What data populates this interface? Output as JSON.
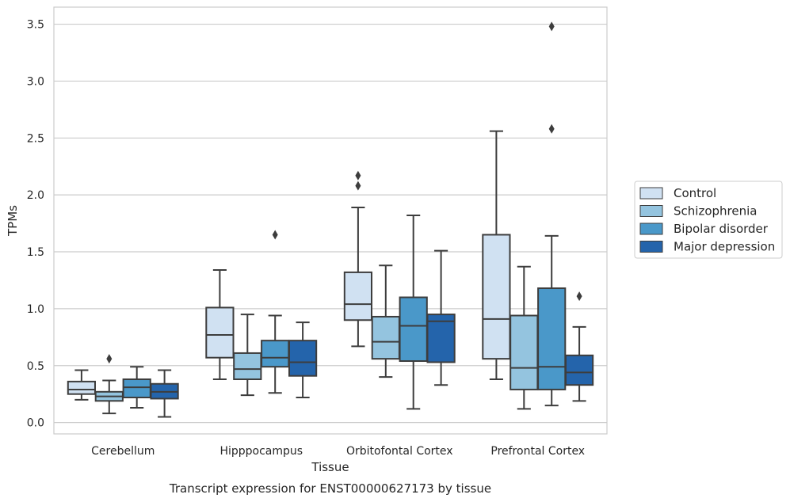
{
  "chart_data": {
    "type": "box",
    "xlabel": "Tissue",
    "ylabel": "TPMs",
    "caption": "Transcript expression for ENST00000627173 by tissue",
    "ylim": [
      -0.1,
      3.65
    ],
    "yticks": [
      0.0,
      0.5,
      1.0,
      1.5,
      2.0,
      2.5,
      3.0,
      3.5
    ],
    "ytick_labels": [
      "0.0",
      "0.5",
      "1.0",
      "1.5",
      "2.0",
      "2.5",
      "3.0",
      "3.5"
    ],
    "grid": "horizontal",
    "legend_position": "right",
    "categories": [
      "Cerebellum",
      "Hipppocampus",
      "Orbitofontal Cortex",
      "Prefrontal Cortex"
    ],
    "series": [
      {
        "name": "Control",
        "color": "#d0e1f2",
        "boxes": [
          {
            "whislo": 0.2,
            "q1": 0.25,
            "med": 0.29,
            "q3": 0.36,
            "whishi": 0.46,
            "fliers": []
          },
          {
            "whislo": 0.38,
            "q1": 0.57,
            "med": 0.77,
            "q3": 1.01,
            "whishi": 1.34,
            "fliers": []
          },
          {
            "whislo": 0.67,
            "q1": 0.9,
            "med": 1.04,
            "q3": 1.32,
            "whishi": 1.89,
            "fliers": [
              2.08,
              2.17
            ]
          },
          {
            "whislo": 0.38,
            "q1": 0.56,
            "med": 0.91,
            "q3": 1.65,
            "whishi": 2.56,
            "fliers": []
          }
        ]
      },
      {
        "name": "Schizophrenia",
        "color": "#94c4df",
        "boxes": [
          {
            "whislo": 0.08,
            "q1": 0.19,
            "med": 0.23,
            "q3": 0.27,
            "whishi": 0.37,
            "fliers": [
              0.56
            ]
          },
          {
            "whislo": 0.24,
            "q1": 0.38,
            "med": 0.47,
            "q3": 0.61,
            "whishi": 0.95,
            "fliers": []
          },
          {
            "whislo": 0.4,
            "q1": 0.56,
            "med": 0.71,
            "q3": 0.93,
            "whishi": 1.38,
            "fliers": []
          },
          {
            "whislo": 0.12,
            "q1": 0.29,
            "med": 0.48,
            "q3": 0.94,
            "whishi": 1.37,
            "fliers": []
          }
        ]
      },
      {
        "name": "Bipolar disorder",
        "color": "#4a98c9",
        "boxes": [
          {
            "whislo": 0.13,
            "q1": 0.22,
            "med": 0.31,
            "q3": 0.38,
            "whishi": 0.49,
            "fliers": []
          },
          {
            "whislo": 0.26,
            "q1": 0.49,
            "med": 0.57,
            "q3": 0.72,
            "whishi": 0.94,
            "fliers": [
              1.65
            ]
          },
          {
            "whislo": 0.12,
            "q1": 0.54,
            "med": 0.85,
            "q3": 1.1,
            "whishi": 1.82,
            "fliers": []
          },
          {
            "whislo": 0.15,
            "q1": 0.29,
            "med": 0.49,
            "q3": 1.18,
            "whishi": 1.64,
            "fliers": [
              2.58,
              3.48
            ]
          }
        ]
      },
      {
        "name": "Major depression",
        "color": "#2464ab",
        "boxes": [
          {
            "whislo": 0.05,
            "q1": 0.21,
            "med": 0.27,
            "q3": 0.34,
            "whishi": 0.46,
            "fliers": []
          },
          {
            "whislo": 0.22,
            "q1": 0.41,
            "med": 0.53,
            "q3": 0.72,
            "whishi": 0.88,
            "fliers": []
          },
          {
            "whislo": 0.33,
            "q1": 0.53,
            "med": 0.89,
            "q3": 0.95,
            "whishi": 1.51,
            "fliers": []
          },
          {
            "whislo": 0.19,
            "q1": 0.33,
            "med": 0.44,
            "q3": 0.59,
            "whishi": 0.84,
            "fliers": [
              1.11
            ]
          }
        ]
      }
    ]
  }
}
